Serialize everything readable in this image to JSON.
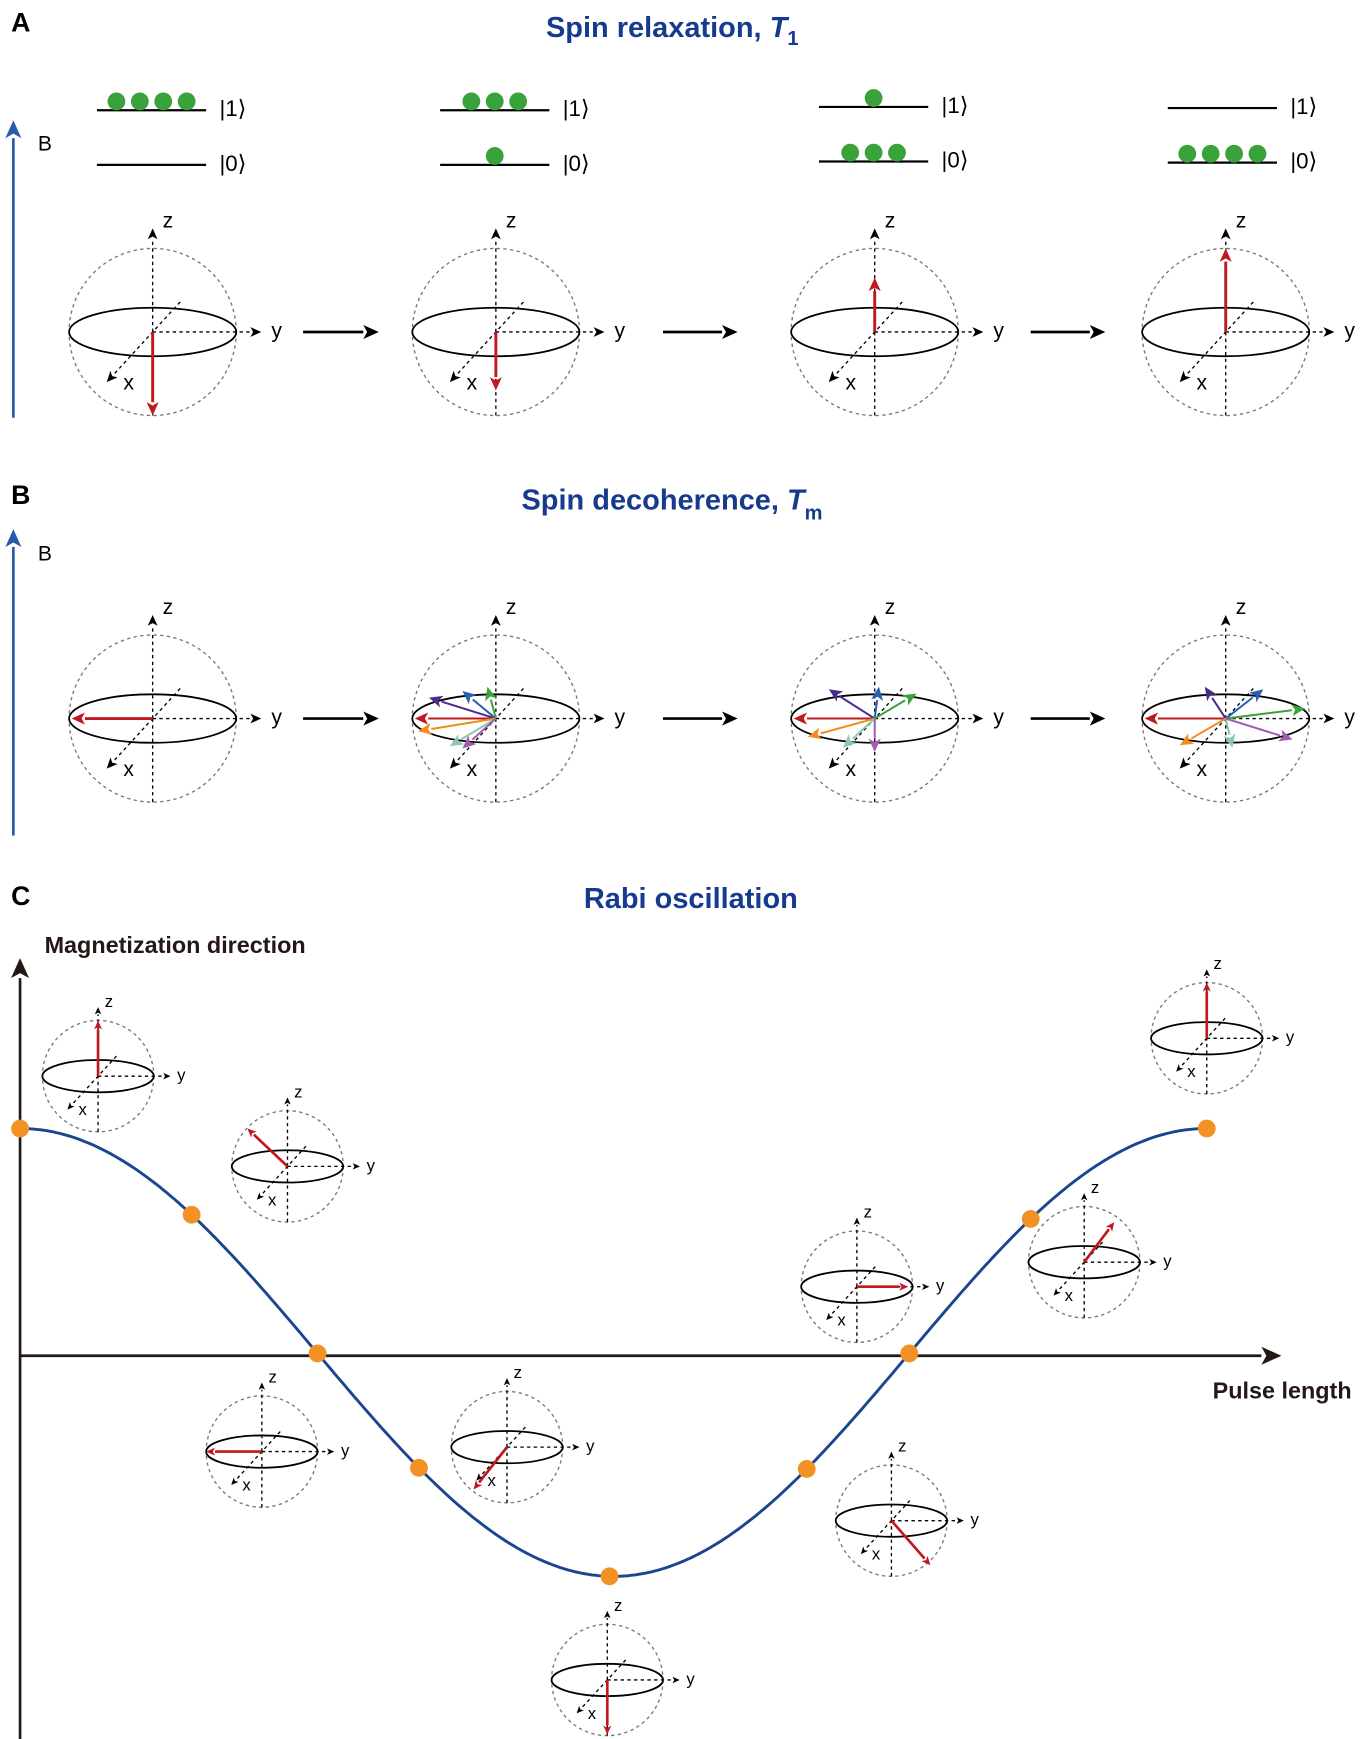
{
  "axis_labels": {
    "x": "x",
    "y": "y",
    "z": "z"
  },
  "field_label": "B",
  "states": {
    "excited": "|1⟩",
    "ground": "|0⟩"
  },
  "panels": [
    {
      "letter": "A",
      "title": "Spin relaxation, ",
      "title_symbol": "T",
      "title_subscript": "1"
    },
    {
      "letter": "B",
      "title": "Spin decoherence, ",
      "title_symbol": "T",
      "title_subscript": "m"
    },
    {
      "letter": "C",
      "title": "Rabi oscillation",
      "y_axis_label": "Magnetization direction",
      "x_axis_label": "Pulse length"
    }
  ]
}
